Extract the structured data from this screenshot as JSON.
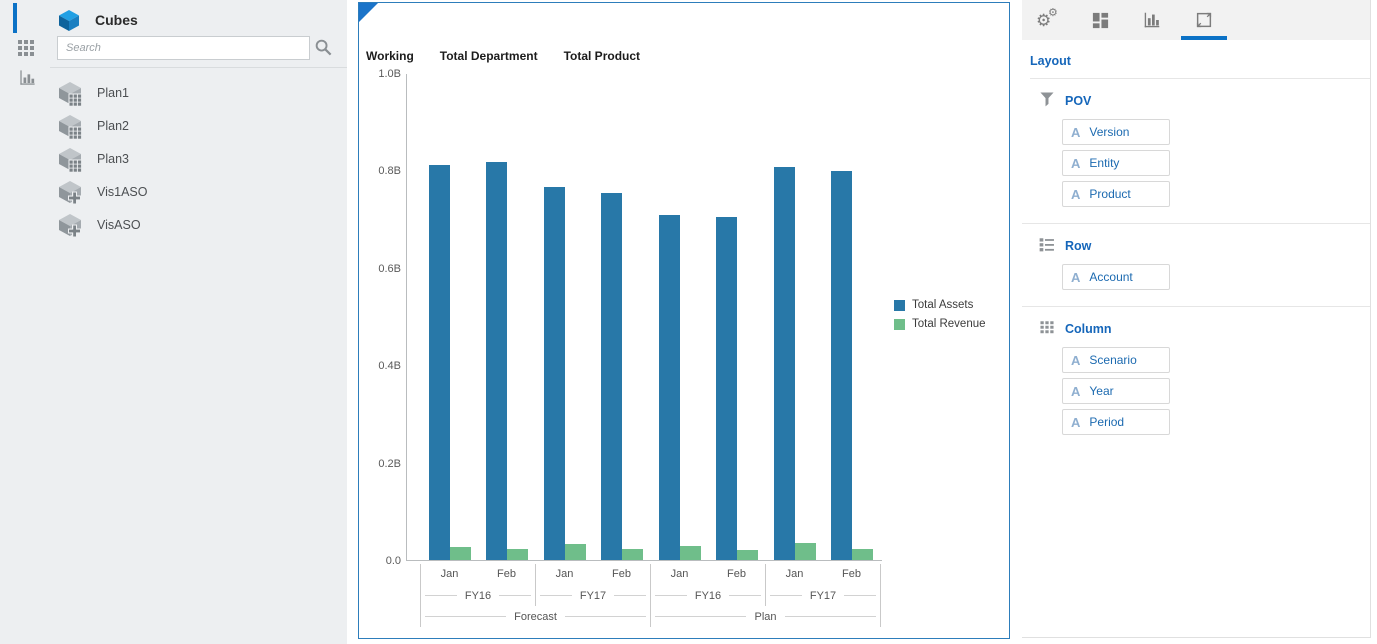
{
  "sidebar": {
    "title": "Cubes",
    "search_placeholder": "Search",
    "cubes": [
      {
        "label": "Plan1",
        "type": "bso"
      },
      {
        "label": "Plan2",
        "type": "bso"
      },
      {
        "label": "Plan3",
        "type": "bso"
      },
      {
        "label": "Vis1ASO",
        "type": "aso"
      },
      {
        "label": "VisASO",
        "type": "aso"
      }
    ]
  },
  "chart_header": {
    "members": [
      "Working",
      "Total Department",
      "Total Product"
    ]
  },
  "chart_data": {
    "type": "bar",
    "title": "",
    "xlabel": "",
    "ylabel": "",
    "ylim": [
      0,
      1.0
    ],
    "unit": "B",
    "grid": false,
    "legend_position": "right",
    "y_tick_labels": [
      "1.0B",
      "0.8B",
      "0.6B",
      "0.4B",
      "0.2B",
      "0.0"
    ],
    "month_labels": [
      "Jan",
      "Feb",
      "Jan",
      "Feb",
      "Jan",
      "Feb",
      "Jan",
      "Feb"
    ],
    "year_labels": [
      "FY16",
      "FY17",
      "FY16",
      "FY17"
    ],
    "scenario_labels": [
      "Forecast",
      "Plan"
    ],
    "series": [
      {
        "name": "Total Assets",
        "color": "#2878a8",
        "values": [
          0.812,
          0.818,
          0.766,
          0.754,
          0.708,
          0.704,
          0.806,
          0.798
        ]
      },
      {
        "name": "Total Revenue",
        "color": "#6fbe8a",
        "values": [
          0.027,
          0.022,
          0.032,
          0.023,
          0.029,
          0.02,
          0.034,
          0.023
        ]
      }
    ]
  },
  "right_panel": {
    "title": "Layout",
    "tab_icons": [
      "settings-gears",
      "layout-blocks",
      "visualization-bars",
      "canvas-resize"
    ],
    "active_tab": 3,
    "sections": [
      {
        "icon": "filter-icon",
        "label": "POV",
        "fields": [
          "Version",
          "Entity",
          "Product"
        ]
      },
      {
        "icon": "rows-icon",
        "label": "Row",
        "fields": [
          "Account"
        ]
      },
      {
        "icon": "columns-icon",
        "label": "Column",
        "fields": [
          "Scenario",
          "Year",
          "Period"
        ]
      }
    ],
    "field_type_glyph": "A"
  },
  "colors": {
    "accent_blue": "#0c72c6",
    "panel_border_blue": "#2d7dbb",
    "bar_blue": "#2878a8",
    "bar_green": "#6fbe8a",
    "link_blue": "#1566ba",
    "sidebar_bg": "#edeff1"
  }
}
